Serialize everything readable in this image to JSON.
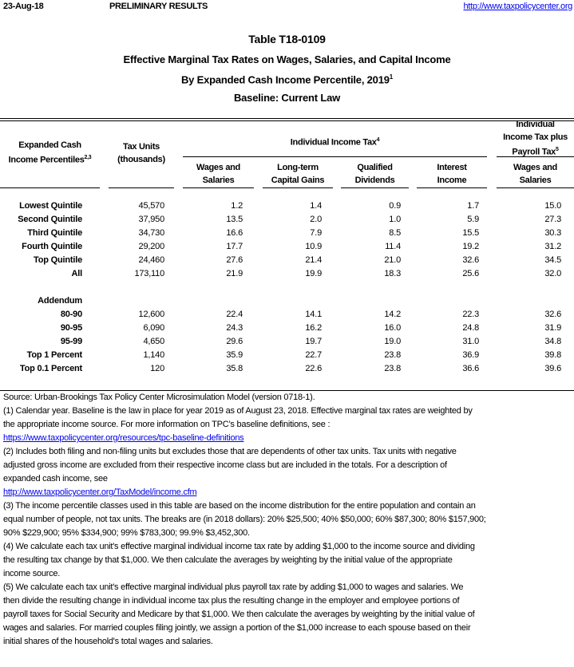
{
  "header": {
    "date": "23-Aug-18",
    "status": "PRELIMINARY RESULTS",
    "url": "http://www.taxpolicycenter.org"
  },
  "title": {
    "table_id": "Table T18-0109",
    "line1": "Effective Marginal Tax Rates on Wages, Salaries, and Capital Income",
    "line2": "By Expanded Cash Income Percentile, 2019",
    "line2_sup": "1",
    "line3": "Baseline: Current Law"
  },
  "columns": {
    "percentile_l1": "Expanded Cash",
    "percentile_l2": "Income Percentiles",
    "percentile_sup": "2,3",
    "units_l1": "Tax Units",
    "units_l2": "(thousands)",
    "iit_group": "Individual Income Tax",
    "iit_sup": "4",
    "payroll_l1": "Individual",
    "payroll_l2": "Income Tax plus",
    "payroll_l3": "Payroll Tax",
    "payroll_sup": "5",
    "wages_l1": "Wages and",
    "wages_l2": "Salaries",
    "ltcg_l1": "Long-term",
    "ltcg_l2": "Capital Gains",
    "qd_l1": "Qualified",
    "qd_l2": "Dividends",
    "int_l1": "Interest",
    "int_l2": "Income",
    "pwages_l1": "Wages and",
    "pwages_l2": "Salaries"
  },
  "rows": [
    {
      "label": "Lowest Quintile",
      "units": "45,570",
      "wages": "1.2",
      "ltcg": "1.4",
      "qd": "0.9",
      "interest": "1.7",
      "payroll_wages": "15.0"
    },
    {
      "label": "Second Quintile",
      "units": "37,950",
      "wages": "13.5",
      "ltcg": "2.0",
      "qd": "1.0",
      "interest": "5.9",
      "payroll_wages": "27.3"
    },
    {
      "label": "Third Quintile",
      "units": "34,730",
      "wages": "16.6",
      "ltcg": "7.9",
      "qd": "8.5",
      "interest": "15.5",
      "payroll_wages": "30.3"
    },
    {
      "label": "Fourth Quintile",
      "units": "29,200",
      "wages": "17.7",
      "ltcg": "10.9",
      "qd": "11.4",
      "interest": "19.2",
      "payroll_wages": "31.2"
    },
    {
      "label": "Top Quintile",
      "units": "24,460",
      "wages": "27.6",
      "ltcg": "21.4",
      "qd": "21.0",
      "interest": "32.6",
      "payroll_wages": "34.5"
    },
    {
      "label": "All",
      "units": "173,110",
      "wages": "21.9",
      "ltcg": "19.9",
      "qd": "18.3",
      "interest": "25.6",
      "payroll_wages": "32.0"
    }
  ],
  "addendum_label": "Addendum",
  "addendum": [
    {
      "label": "80-90",
      "units": "12,600",
      "wages": "22.4",
      "ltcg": "14.1",
      "qd": "14.2",
      "interest": "22.3",
      "payroll_wages": "32.6"
    },
    {
      "label": "90-95",
      "units": "6,090",
      "wages": "24.3",
      "ltcg": "16.2",
      "qd": "16.0",
      "interest": "24.8",
      "payroll_wages": "31.9"
    },
    {
      "label": "95-99",
      "units": "4,650",
      "wages": "29.6",
      "ltcg": "19.7",
      "qd": "19.0",
      "interest": "31.0",
      "payroll_wages": "34.8"
    },
    {
      "label": "Top 1 Percent",
      "units": "1,140",
      "wages": "35.9",
      "ltcg": "22.7",
      "qd": "23.8",
      "interest": "36.9",
      "payroll_wages": "39.8"
    },
    {
      "label": "Top 0.1 Percent",
      "units": "120",
      "wages": "35.8",
      "ltcg": "22.6",
      "qd": "23.8",
      "interest": "36.6",
      "payroll_wages": "39.6"
    }
  ],
  "footnotes": [
    {
      "text": "Source: Urban-Brookings Tax Policy Center Microsimulation Model (version 0718-1)."
    },
    {
      "text": "(1) Calendar year. Baseline is the law in place for year 2019 as of August 23, 2018. Effective marginal tax rates are weighted by"
    },
    {
      "text": "the appropriate income source. For more information on TPC’s baseline definitions, see :"
    },
    {
      "text": "https://www.taxpolicycenter.org/resources/tpc-baseline-definitions",
      "link": true
    },
    {
      "text": "(2) Includes both filing and non-filing units but excludes those that are dependents of other tax units. Tax units with negative"
    },
    {
      "text": "adjusted gross income are excluded from their respective income class but are included in the totals. For a description of"
    },
    {
      "text": "expanded cash income, see"
    },
    {
      "text": "http://www.taxpolicycenter.org/TaxModel/income.cfm",
      "link": true
    },
    {
      "text": "(3) The income percentile classes used in this table are based on the income distribution for the entire population and contain an"
    },
    {
      "text": "equal number of people, not tax units. The breaks are (in 2018 dollars): 20% $25,500; 40% $50,000; 60% $87,300; 80% $157,900;"
    },
    {
      "text": "90% $229,900; 95% $334,900; 99% $783,300; 99.9% $3,452,300."
    },
    {
      "text": "(4) We calculate each tax unit's effective marginal individual income tax rate by adding $1,000 to the income source and dividing"
    },
    {
      "text": "the resulting tax change by that $1,000. We then calculate the averages by weighting by the initial value of the appropriate"
    },
    {
      "text": "income source."
    },
    {
      "text": "(5) We calculate each tax unit's effective marginal individual plus payroll tax rate by adding $1,000 to wages and salaries. We"
    },
    {
      "text": "then divide the resulting change in individual income tax plus the resulting change in the employer and employee portions of"
    },
    {
      "text": "payroll taxes for Social Security and Medicare by that $1,000. We then calculate the averages by weighting by the initial value of"
    },
    {
      "text": "wages and salaries. For married couples filing jointly, we assign a portion of the $1,000 increase to each spouse based on their"
    },
    {
      "text": "initial shares of the household's total wages and salaries."
    }
  ]
}
